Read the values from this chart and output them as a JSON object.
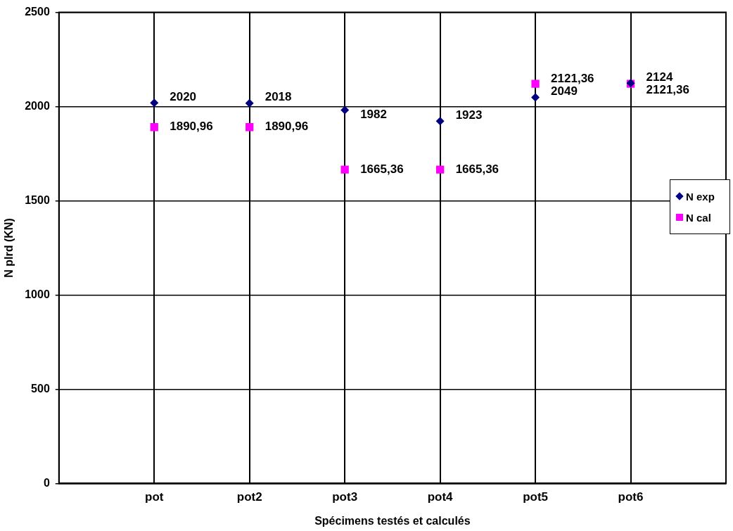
{
  "chart_data": {
    "type": "scatter",
    "xlabel": "Spécimens testés et calculés",
    "ylabel": "N plrd (KN)",
    "categories": [
      "pot",
      "pot2",
      "pot3",
      "pot4",
      "pot5",
      "pot6"
    ],
    "series": [
      {
        "name": "N exp",
        "color": "#000080",
        "marker": "diamond",
        "values": [
          2020,
          2018,
          1982,
          1923,
          2049,
          2124
        ],
        "value_labels": [
          "2020",
          "2018",
          "1982",
          "1923",
          "2049",
          "2124"
        ]
      },
      {
        "name": "N cal",
        "color": "#ff00ff",
        "marker": "square",
        "values": [
          1890.96,
          1890.96,
          1665.36,
          1665.36,
          2121.36,
          2121.36
        ],
        "value_labels": [
          "1890,96",
          "1890,96",
          "1665,36",
          "1665,36",
          "2121,36",
          "2121,36"
        ]
      }
    ],
    "ylim": [
      0,
      2500
    ],
    "yticks": [
      0,
      500,
      1000,
      1500,
      2000,
      2500
    ],
    "grid": true,
    "legend": "right"
  }
}
